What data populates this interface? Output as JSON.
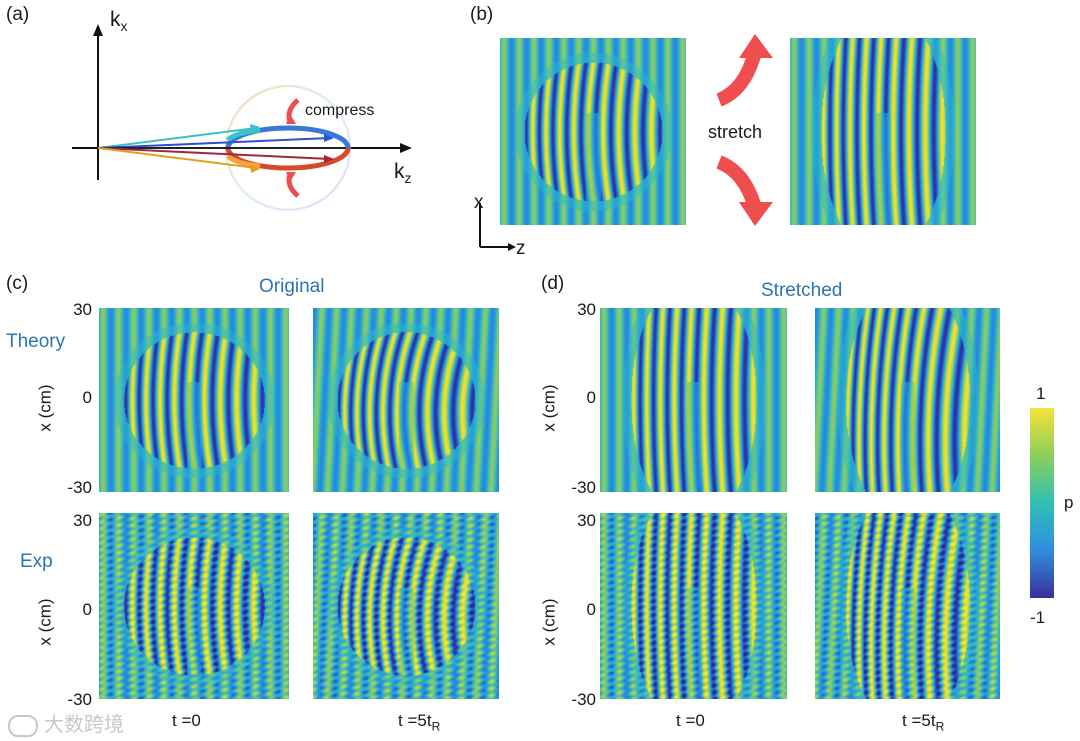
{
  "panel_labels": {
    "a": "(a)",
    "b": "(b)",
    "c": "(c)",
    "d": "(d)"
  },
  "diagram_a": {
    "axis_x": "k",
    "axis_x_sub": "x",
    "axis_z": "k",
    "axis_z_sub": "z",
    "annotation": "compress"
  },
  "diagram_b": {
    "annotation": "stretch",
    "axis_x": "x",
    "axis_z": "z"
  },
  "section_c": {
    "title": "Original",
    "row1": "Theory",
    "row2": "Exp"
  },
  "section_d": {
    "title": "Stretched"
  },
  "y_axis": {
    "label": "x (cm)",
    "ticks": [
      "30",
      "0",
      "-30"
    ]
  },
  "time_labels": {
    "t0": "t =0",
    "t5_main": "t =5t",
    "t5_sub": "R"
  },
  "colorbar": {
    "max": "1",
    "min": "-1",
    "label": "p"
  },
  "watermark": "大数跨境",
  "colors": {
    "accent_title": "#2b74b5",
    "arrow": "#f04e4e",
    "field_mid": "#3bb7c8",
    "field_high": "#f4d33a",
    "field_low": "#2b2f8f"
  }
}
